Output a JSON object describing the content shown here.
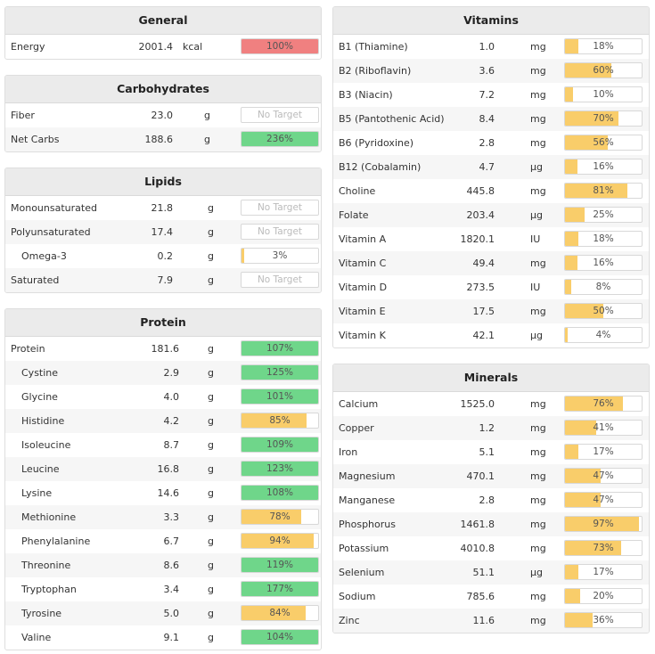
{
  "colors": {
    "red": "#f08080",
    "green": "#6fd68a",
    "orange": "#f9cd6a"
  },
  "panels": [
    {
      "id": "general",
      "title": "General",
      "rows": [
        {
          "name": "Energy",
          "amount": "2001.4",
          "unit": "kcal",
          "pct": 100,
          "pct_label": "100%",
          "color": "red",
          "sub": false
        }
      ]
    },
    {
      "id": "carbohydrates",
      "title": "Carbohydrates",
      "rows": [
        {
          "name": "Fiber",
          "amount": "23.0",
          "unit": "g",
          "pct": null,
          "pct_label": "No Target",
          "color": null,
          "sub": false
        },
        {
          "name": "Net Carbs",
          "amount": "188.6",
          "unit": "g",
          "pct": 236,
          "pct_label": "236%",
          "color": "green",
          "sub": false
        }
      ]
    },
    {
      "id": "lipids",
      "title": "Lipids",
      "rows": [
        {
          "name": "Monounsaturated",
          "amount": "21.8",
          "unit": "g",
          "pct": null,
          "pct_label": "No Target",
          "color": null,
          "sub": false
        },
        {
          "name": "Polyunsaturated",
          "amount": "17.4",
          "unit": "g",
          "pct": null,
          "pct_label": "No Target",
          "color": null,
          "sub": false
        },
        {
          "name": "Omega-3",
          "amount": "0.2",
          "unit": "g",
          "pct": 3,
          "pct_label": "3%",
          "color": "orange",
          "sub": true
        },
        {
          "name": "Saturated",
          "amount": "7.9",
          "unit": "g",
          "pct": null,
          "pct_label": "No Target",
          "color": null,
          "sub": false
        }
      ]
    },
    {
      "id": "protein",
      "title": "Protein",
      "rows": [
        {
          "name": "Protein",
          "amount": "181.6",
          "unit": "g",
          "pct": 107,
          "pct_label": "107%",
          "color": "green",
          "sub": false
        },
        {
          "name": "Cystine",
          "amount": "2.9",
          "unit": "g",
          "pct": 125,
          "pct_label": "125%",
          "color": "green",
          "sub": true
        },
        {
          "name": "Glycine",
          "amount": "4.0",
          "unit": "g",
          "pct": 101,
          "pct_label": "101%",
          "color": "green",
          "sub": true
        },
        {
          "name": "Histidine",
          "amount": "4.2",
          "unit": "g",
          "pct": 85,
          "pct_label": "85%",
          "color": "orange",
          "sub": true
        },
        {
          "name": "Isoleucine",
          "amount": "8.7",
          "unit": "g",
          "pct": 109,
          "pct_label": "109%",
          "color": "green",
          "sub": true
        },
        {
          "name": "Leucine",
          "amount": "16.8",
          "unit": "g",
          "pct": 123,
          "pct_label": "123%",
          "color": "green",
          "sub": true
        },
        {
          "name": "Lysine",
          "amount": "14.6",
          "unit": "g",
          "pct": 108,
          "pct_label": "108%",
          "color": "green",
          "sub": true
        },
        {
          "name": "Methionine",
          "amount": "3.3",
          "unit": "g",
          "pct": 78,
          "pct_label": "78%",
          "color": "orange",
          "sub": true
        },
        {
          "name": "Phenylalanine",
          "amount": "6.7",
          "unit": "g",
          "pct": 94,
          "pct_label": "94%",
          "color": "orange",
          "sub": true
        },
        {
          "name": "Threonine",
          "amount": "8.6",
          "unit": "g",
          "pct": 119,
          "pct_label": "119%",
          "color": "green",
          "sub": true
        },
        {
          "name": "Tryptophan",
          "amount": "3.4",
          "unit": "g",
          "pct": 177,
          "pct_label": "177%",
          "color": "green",
          "sub": true
        },
        {
          "name": "Tyrosine",
          "amount": "5.0",
          "unit": "g",
          "pct": 84,
          "pct_label": "84%",
          "color": "orange",
          "sub": true
        },
        {
          "name": "Valine",
          "amount": "9.1",
          "unit": "g",
          "pct": 104,
          "pct_label": "104%",
          "color": "green",
          "sub": true
        }
      ]
    },
    {
      "id": "vitamins",
      "title": "Vitamins",
      "rows": [
        {
          "name": "B1 (Thiamine)",
          "amount": "1.0",
          "unit": "mg",
          "pct": 18,
          "pct_label": "18%",
          "color": "orange",
          "sub": false
        },
        {
          "name": "B2 (Riboflavin)",
          "amount": "3.6",
          "unit": "mg",
          "pct": 60,
          "pct_label": "60%",
          "color": "orange",
          "sub": false
        },
        {
          "name": "B3 (Niacin)",
          "amount": "7.2",
          "unit": "mg",
          "pct": 10,
          "pct_label": "10%",
          "color": "orange",
          "sub": false
        },
        {
          "name": "B5 (Pantothenic Acid)",
          "amount": "8.4",
          "unit": "mg",
          "pct": 70,
          "pct_label": "70%",
          "color": "orange",
          "sub": false
        },
        {
          "name": "B6 (Pyridoxine)",
          "amount": "2.8",
          "unit": "mg",
          "pct": 56,
          "pct_label": "56%",
          "color": "orange",
          "sub": false
        },
        {
          "name": "B12 (Cobalamin)",
          "amount": "4.7",
          "unit": "µg",
          "pct": 16,
          "pct_label": "16%",
          "color": "orange",
          "sub": false
        },
        {
          "name": "Choline",
          "amount": "445.8",
          "unit": "mg",
          "pct": 81,
          "pct_label": "81%",
          "color": "orange",
          "sub": false
        },
        {
          "name": "Folate",
          "amount": "203.4",
          "unit": "µg",
          "pct": 25,
          "pct_label": "25%",
          "color": "orange",
          "sub": false
        },
        {
          "name": "Vitamin A",
          "amount": "1820.1",
          "unit": "IU",
          "pct": 18,
          "pct_label": "18%",
          "color": "orange",
          "sub": false
        },
        {
          "name": "Vitamin C",
          "amount": "49.4",
          "unit": "mg",
          "pct": 16,
          "pct_label": "16%",
          "color": "orange",
          "sub": false
        },
        {
          "name": "Vitamin D",
          "amount": "273.5",
          "unit": "IU",
          "pct": 8,
          "pct_label": "8%",
          "color": "orange",
          "sub": false
        },
        {
          "name": "Vitamin E",
          "amount": "17.5",
          "unit": "mg",
          "pct": 50,
          "pct_label": "50%",
          "color": "orange",
          "sub": false
        },
        {
          "name": "Vitamin K",
          "amount": "42.1",
          "unit": "µg",
          "pct": 4,
          "pct_label": "4%",
          "color": "orange",
          "sub": false
        }
      ]
    },
    {
      "id": "minerals",
      "title": "Minerals",
      "rows": [
        {
          "name": "Calcium",
          "amount": "1525.0",
          "unit": "mg",
          "pct": 76,
          "pct_label": "76%",
          "color": "orange",
          "sub": false
        },
        {
          "name": "Copper",
          "amount": "1.2",
          "unit": "mg",
          "pct": 41,
          "pct_label": "41%",
          "color": "orange",
          "sub": false
        },
        {
          "name": "Iron",
          "amount": "5.1",
          "unit": "mg",
          "pct": 17,
          "pct_label": "17%",
          "color": "orange",
          "sub": false
        },
        {
          "name": "Magnesium",
          "amount": "470.1",
          "unit": "mg",
          "pct": 47,
          "pct_label": "47%",
          "color": "orange",
          "sub": false
        },
        {
          "name": "Manganese",
          "amount": "2.8",
          "unit": "mg",
          "pct": 47,
          "pct_label": "47%",
          "color": "orange",
          "sub": false
        },
        {
          "name": "Phosphorus",
          "amount": "1461.8",
          "unit": "mg",
          "pct": 97,
          "pct_label": "97%",
          "color": "orange",
          "sub": false
        },
        {
          "name": "Potassium",
          "amount": "4010.8",
          "unit": "mg",
          "pct": 73,
          "pct_label": "73%",
          "color": "orange",
          "sub": false
        },
        {
          "name": "Selenium",
          "amount": "51.1",
          "unit": "µg",
          "pct": 17,
          "pct_label": "17%",
          "color": "orange",
          "sub": false
        },
        {
          "name": "Sodium",
          "amount": "785.6",
          "unit": "mg",
          "pct": 20,
          "pct_label": "20%",
          "color": "orange",
          "sub": false
        },
        {
          "name": "Zinc",
          "amount": "11.6",
          "unit": "mg",
          "pct": 36,
          "pct_label": "36%",
          "color": "orange",
          "sub": false
        }
      ]
    }
  ]
}
